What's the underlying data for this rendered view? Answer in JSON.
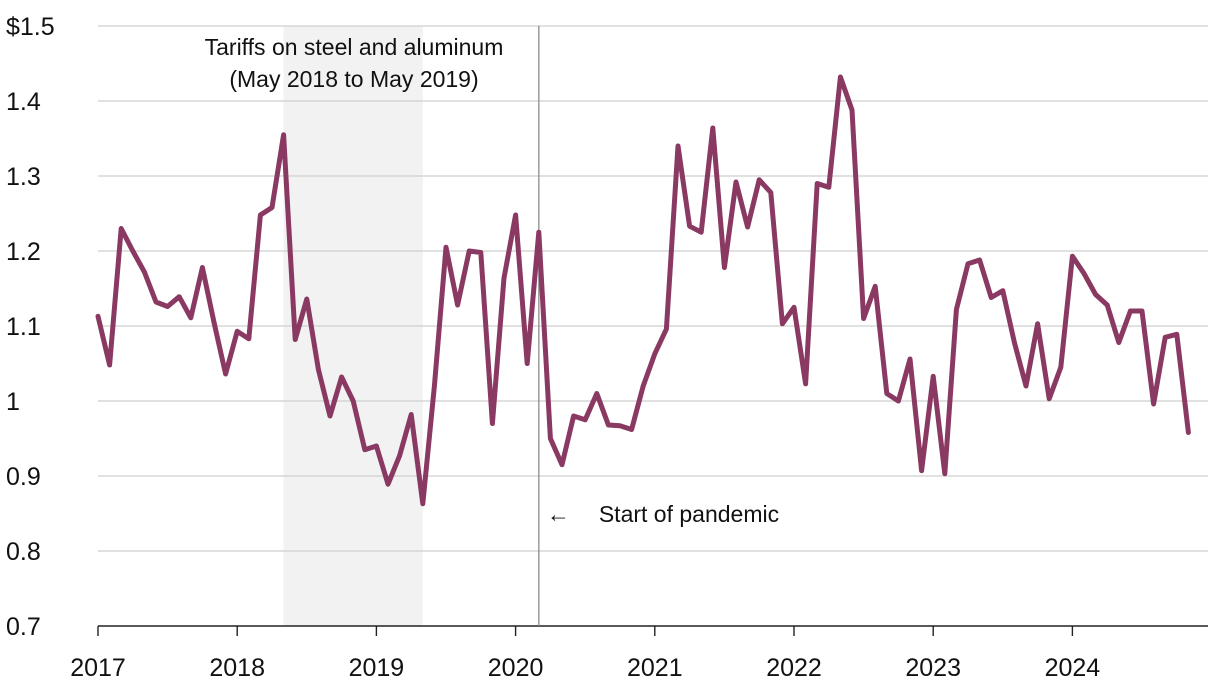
{
  "chart_data": {
    "type": "line",
    "title": "",
    "xlabel": "",
    "ylabel": "",
    "ylim": [
      0.7,
      1.5
    ],
    "y_ticks": [
      {
        "value": 1.5,
        "label": "$1.5"
      },
      {
        "value": 1.4,
        "label": "1.4"
      },
      {
        "value": 1.3,
        "label": "1.3"
      },
      {
        "value": 1.2,
        "label": "1.2"
      },
      {
        "value": 1.1,
        "label": "1.1"
      },
      {
        "value": 1.0,
        "label": "1"
      },
      {
        "value": 0.9,
        "label": "0.9"
      },
      {
        "value": 0.8,
        "label": "0.8"
      },
      {
        "value": 0.7,
        "label": "0.7"
      }
    ],
    "x_ticks": [
      {
        "value": 2017,
        "label": "2017"
      },
      {
        "value": 2018,
        "label": "2018"
      },
      {
        "value": 2019,
        "label": "2019"
      },
      {
        "value": 2020,
        "label": "2020"
      },
      {
        "value": 2021,
        "label": "2021"
      },
      {
        "value": 2022,
        "label": "2022"
      },
      {
        "value": 2023,
        "label": "2023"
      },
      {
        "value": 2024,
        "label": "2024"
      }
    ],
    "shaded_region": {
      "start": 2018.333,
      "end": 2019.333,
      "label_line1": "Tariffs on steel and aluminum",
      "label_line2": "(May 2018 to May 2019)"
    },
    "vline": {
      "x": 2020.167,
      "label": "Start of pandemic",
      "arrow": "←"
    },
    "series": [
      {
        "name": "Price",
        "color": "#8a3a62",
        "start": 2017.0,
        "step": 0.0833333,
        "values": [
          1.113,
          1.048,
          1.23,
          1.2,
          1.172,
          1.132,
          1.126,
          1.139,
          1.111,
          1.178,
          1.105,
          1.036,
          1.093,
          1.083,
          1.248,
          1.258,
          1.355,
          1.082,
          1.136,
          1.042,
          0.98,
          1.032,
          1.0,
          0.935,
          0.94,
          0.889,
          0.927,
          0.982,
          0.863,
          1.02,
          1.205,
          1.128,
          1.2,
          1.198,
          0.97,
          1.164,
          1.248,
          1.05,
          1.225,
          0.95,
          0.915,
          0.98,
          0.975,
          1.01,
          0.968,
          0.967,
          0.962,
          1.02,
          1.063,
          1.096,
          1.34,
          1.233,
          1.225,
          1.364,
          1.178,
          1.292,
          1.232,
          1.295,
          1.278,
          1.103,
          1.125,
          1.023,
          1.29,
          1.285,
          1.432,
          1.388,
          1.11,
          1.153,
          1.01,
          1.0,
          1.056,
          0.907,
          1.033,
          0.903,
          1.122,
          1.183,
          1.188,
          1.138,
          1.147,
          1.078,
          1.02,
          1.103,
          1.003,
          1.045,
          1.193,
          1.17,
          1.142,
          1.128,
          1.078,
          1.12,
          1.12,
          0.996,
          1.085,
          1.089,
          0.958
        ]
      }
    ]
  }
}
